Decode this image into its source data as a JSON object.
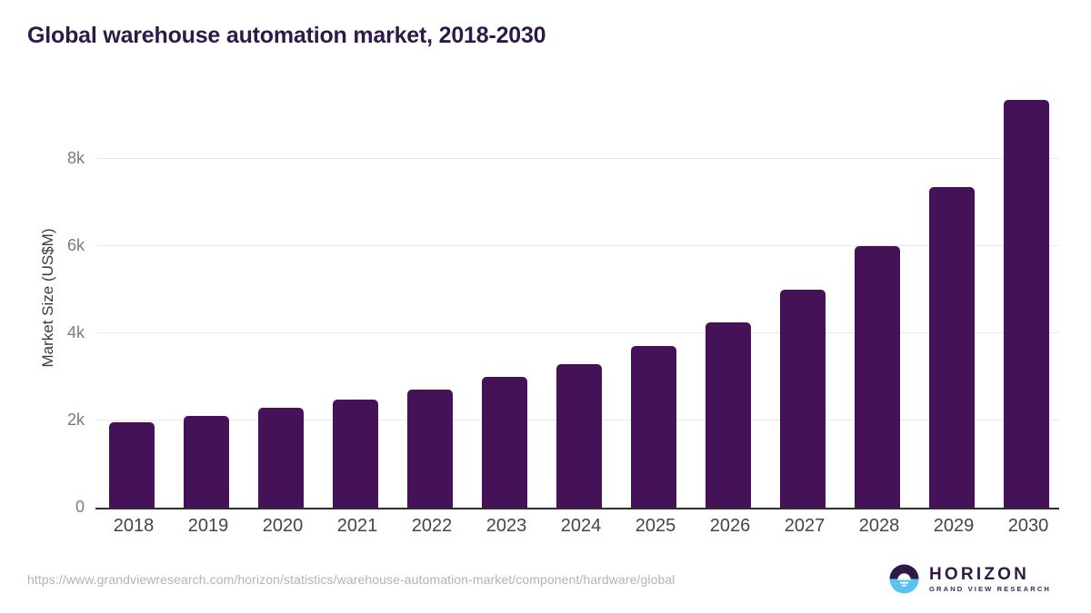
{
  "page": {
    "title": "Global warehouse automation market, 2018-2030",
    "source_url": "https://www.grandviewresearch.com/horizon/statistics/warehouse-automation-market/component/hardware/global"
  },
  "branding": {
    "logo_icon": "horizon-sun-logo",
    "brand": "HORIZON",
    "sub_brand": "GRAND VIEW RESEARCH"
  },
  "colors": {
    "bar": "#461257",
    "title": "#2e1a47",
    "grid": "#e9e9e9",
    "axis": "#2e2e2e",
    "xtick": "#454545",
    "ytick": "#7a7a7a",
    "url": "#b3b3b3",
    "logo_blue": "#58c4ef",
    "logo_purple": "#2e1a47"
  },
  "chart_data": {
    "type": "bar",
    "title": "Global warehouse automation market, 2018-2030",
    "xlabel": "",
    "ylabel": "Market Size (US$M)",
    "categories": [
      "2018",
      "2019",
      "2020",
      "2021",
      "2022",
      "2023",
      "2024",
      "2025",
      "2026",
      "2027",
      "2028",
      "2029",
      "2030"
    ],
    "values": [
      1950,
      2100,
      2290,
      2480,
      2700,
      2990,
      3300,
      3710,
      4250,
      5000,
      6000,
      7360,
      9360
    ],
    "series_name": "Market Size (US$M)",
    "ylim": [
      0,
      9600
    ],
    "yticks": [
      {
        "label": "0",
        "value": 0
      },
      {
        "label": "2k",
        "value": 2000
      },
      {
        "label": "4k",
        "value": 4000
      },
      {
        "label": "6k",
        "value": 6000
      },
      {
        "label": "8k",
        "value": 8000
      }
    ],
    "grid": "horizontal-only",
    "legend": "none",
    "bar_color": "#461257"
  }
}
